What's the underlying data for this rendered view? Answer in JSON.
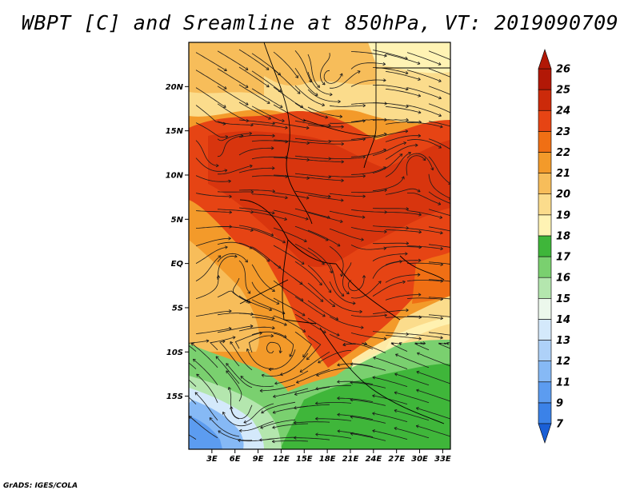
{
  "title": "WBPT [C] and Sreamline at 850hPa, VT: 2019090709",
  "footer": "GrADS: IGES/COLA",
  "map": {
    "lat_range": [
      -21,
      25
    ],
    "lon_range": [
      0,
      34
    ],
    "lat_ticks": [
      {
        "value": 20,
        "label": "20N"
      },
      {
        "value": 15,
        "label": "15N"
      },
      {
        "value": 10,
        "label": "10N"
      },
      {
        "value": 5,
        "label": "5N"
      },
      {
        "value": 0,
        "label": "EQ"
      },
      {
        "value": -5,
        "label": "5S"
      },
      {
        "value": -10,
        "label": "10S"
      },
      {
        "value": -15,
        "label": "15S"
      }
    ],
    "lon_ticks": [
      {
        "value": 3,
        "label": "3E"
      },
      {
        "value": 6,
        "label": "6E"
      },
      {
        "value": 9,
        "label": "9E"
      },
      {
        "value": 12,
        "label": "12E"
      },
      {
        "value": 15,
        "label": "15E"
      },
      {
        "value": 18,
        "label": "18E"
      },
      {
        "value": 21,
        "label": "21E"
      },
      {
        "value": 24,
        "label": "24E"
      },
      {
        "value": 27,
        "label": "27E"
      },
      {
        "value": 30,
        "label": "30E"
      },
      {
        "value": 33,
        "label": "33E"
      }
    ]
  },
  "colorbar": {
    "levels": [
      "7",
      "9",
      "11",
      "12",
      "13",
      "14",
      "15",
      "16",
      "17",
      "18",
      "19",
      "20",
      "21",
      "22",
      "23",
      "24",
      "25",
      "26"
    ],
    "colors": [
      "#1a5fd6",
      "#3b82e8",
      "#5c9cf0",
      "#86b9f5",
      "#aed1f8",
      "#d4e9fb",
      "#ecf8ec",
      "#b4e6ae",
      "#7ad06f",
      "#3fb63a",
      "#fff3b4",
      "#fbdc8c",
      "#f7bd5a",
      "#f39a2a",
      "#f06f14",
      "#e64414",
      "#cc2a0a",
      "#b21806"
    ]
  }
}
